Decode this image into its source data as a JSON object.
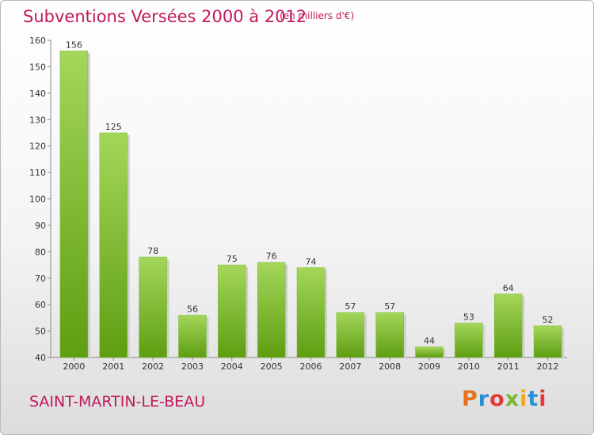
{
  "header": {
    "title": "Subventions Versées 2000 à 2012",
    "unit": "(en milliers d'€)"
  },
  "footer": {
    "commune": "SAINT-MARTIN-LE-BEAU",
    "logo": "Proxiti",
    "logo_colors": [
      "#e8731f",
      "#2a8fd6",
      "#e53935",
      "#7bb82f",
      "#f2a81d",
      "#2a8fd6",
      "#e53935"
    ]
  },
  "colors": {
    "title": "#c2185b",
    "bar_top": "#a4d65a",
    "bar_bottom": "#5e9e12"
  },
  "chart_data": {
    "type": "bar",
    "categories": [
      "2000",
      "2001",
      "2002",
      "2003",
      "2004",
      "2005",
      "2006",
      "2007",
      "2008",
      "2009",
      "2010",
      "2011",
      "2012"
    ],
    "values": [
      156,
      125,
      78,
      56,
      75,
      76,
      74,
      57,
      57,
      44,
      53,
      64,
      52
    ],
    "ylim": [
      40,
      160
    ],
    "yticks": [
      40,
      50,
      60,
      70,
      80,
      90,
      100,
      110,
      120,
      130,
      140,
      150,
      160
    ],
    "grid": false
  }
}
